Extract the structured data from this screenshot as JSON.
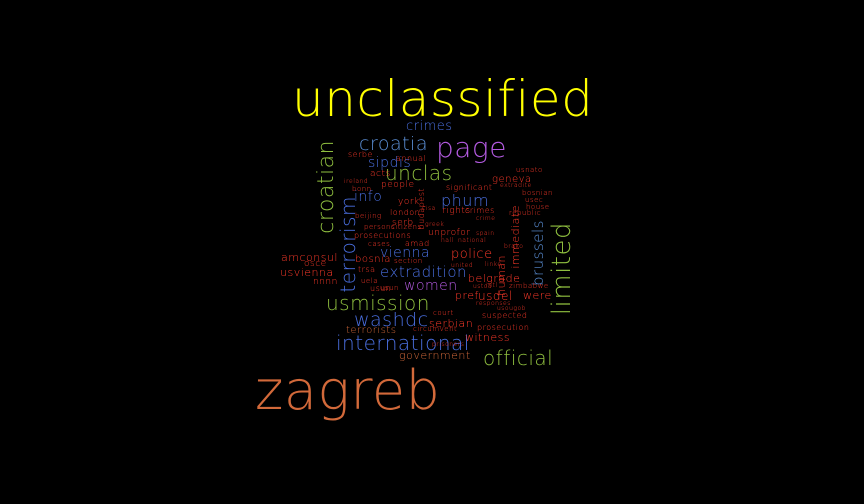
{
  "colors": {
    "background": "#000000",
    "yellow": "#ffff00",
    "purple": "#b35ae0",
    "orange": "#d2693a",
    "green": "#8fbf3f",
    "blue": "#4a6fe0",
    "red": "#ff3a2a",
    "steel": "#5b8fd6"
  },
  "words": [
    {
      "text": "unclassified"
    },
    {
      "text": "zagreb"
    },
    {
      "text": "page"
    },
    {
      "text": "limited"
    },
    {
      "text": "croatian"
    },
    {
      "text": "terrorism"
    },
    {
      "text": "usmission"
    },
    {
      "text": "international"
    },
    {
      "text": "official"
    },
    {
      "text": "croatia"
    },
    {
      "text": "unclas"
    },
    {
      "text": "washdc"
    },
    {
      "text": "extradition"
    },
    {
      "text": "brussels"
    },
    {
      "text": "phum"
    },
    {
      "text": "crimes"
    },
    {
      "text": "sipdis"
    },
    {
      "text": "info"
    },
    {
      "text": "women"
    },
    {
      "text": "vienna"
    },
    {
      "text": "police"
    },
    {
      "text": "belgrade"
    },
    {
      "text": "usdel"
    },
    {
      "text": "serbian"
    },
    {
      "text": "witness"
    },
    {
      "text": "government"
    },
    {
      "text": "terrorists"
    },
    {
      "text": "amconsul"
    },
    {
      "text": "usvienna"
    },
    {
      "text": "osce"
    },
    {
      "text": "nnnn"
    },
    {
      "text": "bosnia"
    },
    {
      "text": "immediate"
    },
    {
      "text": "human"
    },
    {
      "text": "were"
    },
    {
      "text": "geneva"
    },
    {
      "text": "people"
    },
    {
      "text": "annual"
    },
    {
      "text": "acts"
    },
    {
      "text": "serbe"
    },
    {
      "text": "usnato"
    },
    {
      "text": "significant"
    },
    {
      "text": "extradite"
    },
    {
      "text": "bosnian"
    },
    {
      "text": "usec"
    },
    {
      "text": "house"
    },
    {
      "text": "republic"
    },
    {
      "text": "rights"
    },
    {
      "text": "crimes"
    },
    {
      "text": "york"
    },
    {
      "text": "london"
    },
    {
      "text": "budapest"
    },
    {
      "text": "beijing"
    },
    {
      "text": "ireland"
    },
    {
      "text": "bonn"
    },
    {
      "text": "serb"
    },
    {
      "text": "prosecutions"
    },
    {
      "text": "unprofor"
    },
    {
      "text": "cases"
    },
    {
      "text": "amad"
    },
    {
      "text": "persons"
    },
    {
      "text": "citizens"
    },
    {
      "text": "section"
    },
    {
      "text": "trsa"
    },
    {
      "text": "uela"
    },
    {
      "text": "usun"
    },
    {
      "text": "usun"
    },
    {
      "text": "court"
    },
    {
      "text": "suspected"
    },
    {
      "text": "prosecution"
    },
    {
      "text": "prisoners"
    },
    {
      "text": "zimbabwe"
    },
    {
      "text": "responses"
    },
    {
      "text": "united"
    },
    {
      "text": "national"
    },
    {
      "text": "hall"
    },
    {
      "text": "spain"
    },
    {
      "text": "linke"
    },
    {
      "text": "brako"
    },
    {
      "text": "cisa"
    },
    {
      "text": "crime"
    },
    {
      "text": "ustoa"
    },
    {
      "text": "pref"
    },
    {
      "text": "intl"
    },
    {
      "text": "usougob"
    },
    {
      "text": "circumvent"
    },
    {
      "text": "greek"
    }
  ]
}
